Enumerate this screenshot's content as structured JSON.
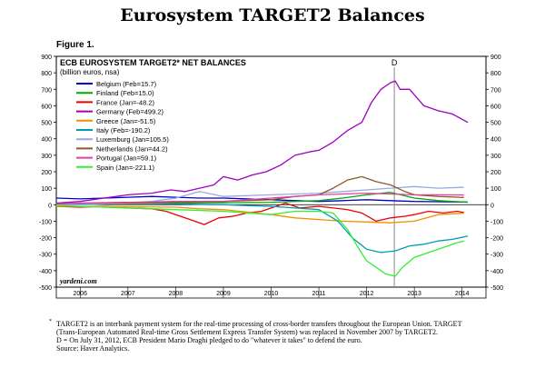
{
  "page": {
    "title": "Eurosystem TARGET2 Balances",
    "figure_label": "Figure 1.",
    "footnote_marker": "*",
    "footnotes": [
      "TARGET2 is an interbank payment system for the real-time processing of cross-border transfers throughout the European Union. TARGET",
      "(Trans-European Automated Real-time Gross Settlement Express Transfer System) was replaced in November 2007 by TARGET2.",
      "D = On July 31, 2012, ECB President Mario Draghi pledged to do \"whatever it takes\" to defend the euro.",
      "Source: Haver Analytics."
    ]
  },
  "chart_data": {
    "type": "line",
    "title": "ECB EUROSYSTEM TARGET2* NET BALANCES",
    "subtitle": "(billion euros, nsa)",
    "watermark": "yardeni.com",
    "xlim": [
      2005.5,
      2014.5
    ],
    "ylim": [
      -500,
      900
    ],
    "yticks": [
      -500,
      -400,
      -300,
      -200,
      -100,
      0,
      100,
      200,
      300,
      400,
      500,
      600,
      700,
      800,
      900
    ],
    "xtick_labels": [
      "2006",
      "2007",
      "2008",
      "2009",
      "2010",
      "2011",
      "2012",
      "2013",
      "2014"
    ],
    "xtick_positions": [
      2006,
      2007,
      2008,
      2009,
      2010,
      2011,
      2012,
      2013,
      2014
    ],
    "grid": false,
    "legend_position": "top-left",
    "annotation": {
      "label": "D",
      "x": 2012.58
    },
    "series": [
      {
        "name": "Belgium (Feb=15.7)",
        "color": "#0000cc",
        "x": [
          2005.5,
          2006.0,
          2006.5,
          2007.0,
          2007.5,
          2008.0,
          2008.5,
          2009.0,
          2009.5,
          2010.0,
          2010.5,
          2011.0,
          2011.5,
          2012.0,
          2012.5,
          2013.0,
          2013.5,
          2014.12
        ],
        "y": [
          40,
          35,
          40,
          45,
          50,
          45,
          40,
          40,
          35,
          30,
          25,
          20,
          25,
          30,
          25,
          20,
          18,
          15.7
        ]
      },
      {
        "name": "Finland (Feb=15.0)",
        "color": "#00aa00",
        "x": [
          2005.5,
          2006.0,
          2007.0,
          2008.0,
          2009.0,
          2010.0,
          2011.0,
          2011.5,
          2012.0,
          2012.5,
          2013.0,
          2013.5,
          2014.12
        ],
        "y": [
          5,
          5,
          8,
          10,
          12,
          15,
          25,
          40,
          60,
          75,
          40,
          25,
          15
        ]
      },
      {
        "name": "France (Jan=-48.2)",
        "color": "#ee0000",
        "x": [
          2005.5,
          2006.0,
          2006.5,
          2007.0,
          2007.5,
          2007.8,
          2008.0,
          2008.3,
          2008.6,
          2008.9,
          2009.2,
          2009.5,
          2009.8,
          2010.0,
          2010.3,
          2010.6,
          2011.0,
          2011.3,
          2011.6,
          2011.9,
          2012.2,
          2012.5,
          2012.8,
          2013.0,
          2013.3,
          2013.6,
          2013.9,
          2014.04
        ],
        "y": [
          -10,
          -15,
          -10,
          -20,
          -25,
          -40,
          -60,
          -90,
          -120,
          -80,
          -70,
          -50,
          -40,
          -20,
          10,
          -20,
          -10,
          -20,
          -30,
          -50,
          -100,
          -80,
          -70,
          -60,
          -40,
          -50,
          -40,
          -48.2
        ]
      },
      {
        "name": "Germany (Feb=499.2)",
        "color": "#a000c0",
        "x": [
          2005.5,
          2006.0,
          2006.5,
          2007.0,
          2007.5,
          2007.9,
          2008.2,
          2008.5,
          2008.8,
          2009.0,
          2009.3,
          2009.6,
          2009.9,
          2010.2,
          2010.5,
          2010.8,
          2011.0,
          2011.3,
          2011.6,
          2011.9,
          2012.1,
          2012.3,
          2012.5,
          2012.6,
          2012.7,
          2012.9,
          2013.2,
          2013.5,
          2013.8,
          2014.12
        ],
        "y": [
          10,
          20,
          40,
          60,
          70,
          90,
          80,
          100,
          120,
          170,
          150,
          180,
          200,
          240,
          300,
          320,
          330,
          380,
          450,
          500,
          620,
          700,
          740,
          750,
          700,
          700,
          600,
          570,
          550,
          499.2
        ]
      },
      {
        "name": "Greece (Jan=-51.5)",
        "color": "#f09000",
        "x": [
          2005.5,
          2006.0,
          2007.0,
          2008.0,
          2008.5,
          2009.0,
          2009.5,
          2010.0,
          2010.5,
          2011.0,
          2011.5,
          2012.0,
          2012.5,
          2013.0,
          2013.5,
          2014.04
        ],
        "y": [
          -10,
          -10,
          -12,
          -15,
          -25,
          -30,
          -45,
          -60,
          -80,
          -90,
          -100,
          -105,
          -110,
          -100,
          -60,
          -51.5
        ]
      },
      {
        "name": "Italy (Feb=-190.2)",
        "color": "#009cb0",
        "x": [
          2005.5,
          2006.0,
          2007.0,
          2008.0,
          2009.0,
          2010.0,
          2010.5,
          2011.0,
          2011.4,
          2011.7,
          2012.0,
          2012.3,
          2012.6,
          2012.9,
          2013.2,
          2013.5,
          2013.8,
          2014.12
        ],
        "y": [
          0,
          5,
          10,
          5,
          0,
          -10,
          -20,
          -30,
          -100,
          -200,
          -270,
          -290,
          -280,
          -250,
          -240,
          -220,
          -210,
          -190.2
        ]
      },
      {
        "name": "Luxemburg (Jan=105.5)",
        "color": "#9aa8e0",
        "x": [
          2005.5,
          2006.0,
          2007.0,
          2007.5,
          2008.0,
          2008.5,
          2009.0,
          2010.0,
          2011.0,
          2011.5,
          2012.0,
          2012.5,
          2013.0,
          2013.5,
          2014.04
        ],
        "y": [
          0,
          0,
          10,
          20,
          40,
          80,
          50,
          60,
          70,
          80,
          90,
          100,
          110,
          100,
          105.5
        ]
      },
      {
        "name": "Netherlands (Jan=44.2)",
        "color": "#8b5a2b",
        "x": [
          2005.5,
          2006.0,
          2007.0,
          2008.0,
          2009.0,
          2010.0,
          2010.5,
          2011.0,
          2011.3,
          2011.6,
          2011.9,
          2012.2,
          2012.5,
          2012.8,
          2013.0,
          2013.5,
          2014.04
        ],
        "y": [
          5,
          10,
          10,
          15,
          20,
          30,
          50,
          60,
          100,
          150,
          170,
          140,
          120,
          80,
          60,
          50,
          44.2
        ]
      },
      {
        "name": "Portugal (Jan=59.1)",
        "color": "#e040a0",
        "x": [
          2005.5,
          2006.0,
          2007.0,
          2008.0,
          2009.0,
          2009.5,
          2010.0,
          2010.5,
          2011.0,
          2011.5,
          2012.0,
          2012.5,
          2013.0,
          2013.5,
          2014.04
        ],
        "y": [
          5,
          10,
          15,
          20,
          20,
          30,
          40,
          50,
          60,
          65,
          70,
          65,
          60,
          60,
          59.1
        ]
      },
      {
        "name": "Spain (Jan=-221.1)",
        "color": "#33ee33",
        "x": [
          2005.5,
          2006.0,
          2007.0,
          2008.0,
          2009.0,
          2009.5,
          2010.0,
          2010.5,
          2011.0,
          2011.3,
          2011.6,
          2011.8,
          2012.0,
          2012.2,
          2012.4,
          2012.6,
          2012.75,
          2013.0,
          2013.3,
          2013.6,
          2013.9,
          2014.04
        ],
        "y": [
          -5,
          -10,
          -20,
          -30,
          -40,
          -50,
          -60,
          -40,
          -40,
          -50,
          -150,
          -250,
          -340,
          -380,
          -420,
          -434,
          -380,
          -320,
          -290,
          -260,
          -230,
          -221.1
        ]
      }
    ]
  }
}
